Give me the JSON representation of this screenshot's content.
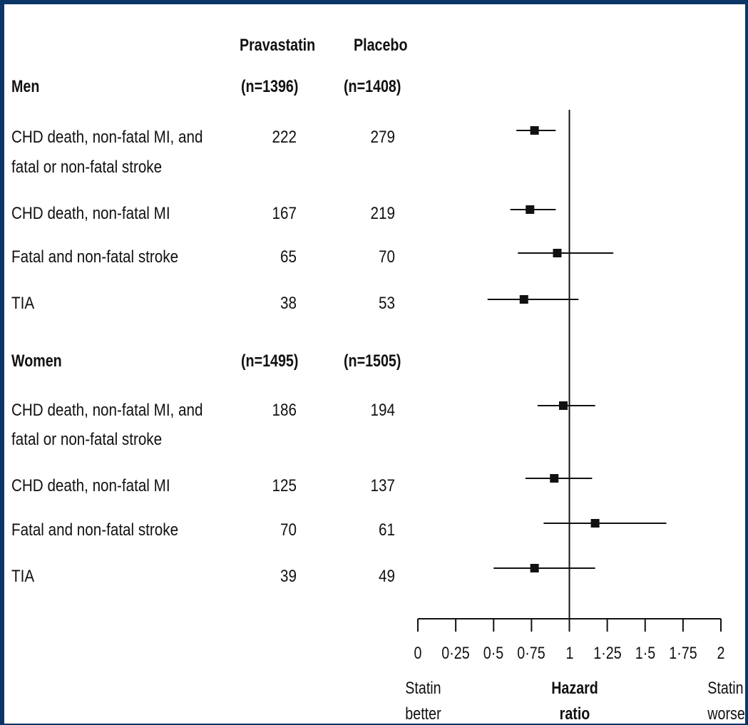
{
  "columns": {
    "pravastatin": "Pravastatin",
    "placebo": "Placebo"
  },
  "groups": [
    {
      "name": "Men",
      "n_pravastatin": "(n=1396)",
      "n_placebo": "(n=1408)",
      "rows": [
        {
          "label": [
            "CHD death, non-fatal MI, and",
            "fatal or non-fatal stroke"
          ],
          "pravastatin": "222",
          "placebo": "279"
        },
        {
          "label": [
            "CHD death, non-fatal MI"
          ],
          "pravastatin": "167",
          "placebo": "219"
        },
        {
          "label": [
            "Fatal and non-fatal stroke"
          ],
          "pravastatin": "65",
          "placebo": "70"
        },
        {
          "label": [
            "TIA"
          ],
          "pravastatin": "38",
          "placebo": "53"
        }
      ]
    },
    {
      "name": "Women",
      "n_pravastatin": "(n=1495)",
      "n_placebo": "(n=1505)",
      "rows": [
        {
          "label": [
            "CHD death, non-fatal MI, and",
            "fatal or non-fatal stroke"
          ],
          "pravastatin": "186",
          "placebo": "194"
        },
        {
          "label": [
            "CHD death, non-fatal MI"
          ],
          "pravastatin": "125",
          "placebo": "137"
        },
        {
          "label": [
            "Fatal and non-fatal stroke"
          ],
          "pravastatin": "70",
          "placebo": "61"
        },
        {
          "label": [
            "TIA"
          ],
          "pravastatin": "39",
          "placebo": "49"
        }
      ]
    }
  ],
  "chart_data": {
    "type": "forest",
    "xlabel": "Hazard ratio",
    "xlim": [
      0,
      2
    ],
    "ticks": [
      "0",
      "0·25",
      "0·5",
      "0·75",
      "1",
      "1·25",
      "1·5",
      "1·75",
      "2"
    ],
    "tick_values": [
      0,
      0.25,
      0.5,
      0.75,
      1,
      1.25,
      1.5,
      1.75,
      2
    ],
    "reference_line": 1,
    "left_note": "Statin better",
    "right_note": "Statin worse",
    "points": [
      {
        "group": "Men",
        "outcome": "CHD death, non-fatal MI, and fatal or non-fatal stroke",
        "hr": 0.77,
        "ci": [
          0.65,
          0.91
        ]
      },
      {
        "group": "Men",
        "outcome": "CHD death, non-fatal MI",
        "hr": 0.74,
        "ci": [
          0.61,
          0.91
        ]
      },
      {
        "group": "Men",
        "outcome": "Fatal and non-fatal stroke",
        "hr": 0.92,
        "ci": [
          0.66,
          1.29
        ]
      },
      {
        "group": "Men",
        "outcome": "TIA",
        "hr": 0.7,
        "ci": [
          0.46,
          1.06
        ]
      },
      {
        "group": "Women",
        "outcome": "CHD death, non-fatal MI, and fatal or non-fatal stroke",
        "hr": 0.96,
        "ci": [
          0.79,
          1.17
        ]
      },
      {
        "group": "Women",
        "outcome": "CHD death, non-fatal MI",
        "hr": 0.9,
        "ci": [
          0.71,
          1.15
        ]
      },
      {
        "group": "Women",
        "outcome": "Fatal and non-fatal stroke",
        "hr": 1.17,
        "ci": [
          0.83,
          1.64
        ]
      },
      {
        "group": "Women",
        "outcome": "TIA",
        "hr": 0.77,
        "ci": [
          0.5,
          1.17
        ]
      }
    ]
  }
}
